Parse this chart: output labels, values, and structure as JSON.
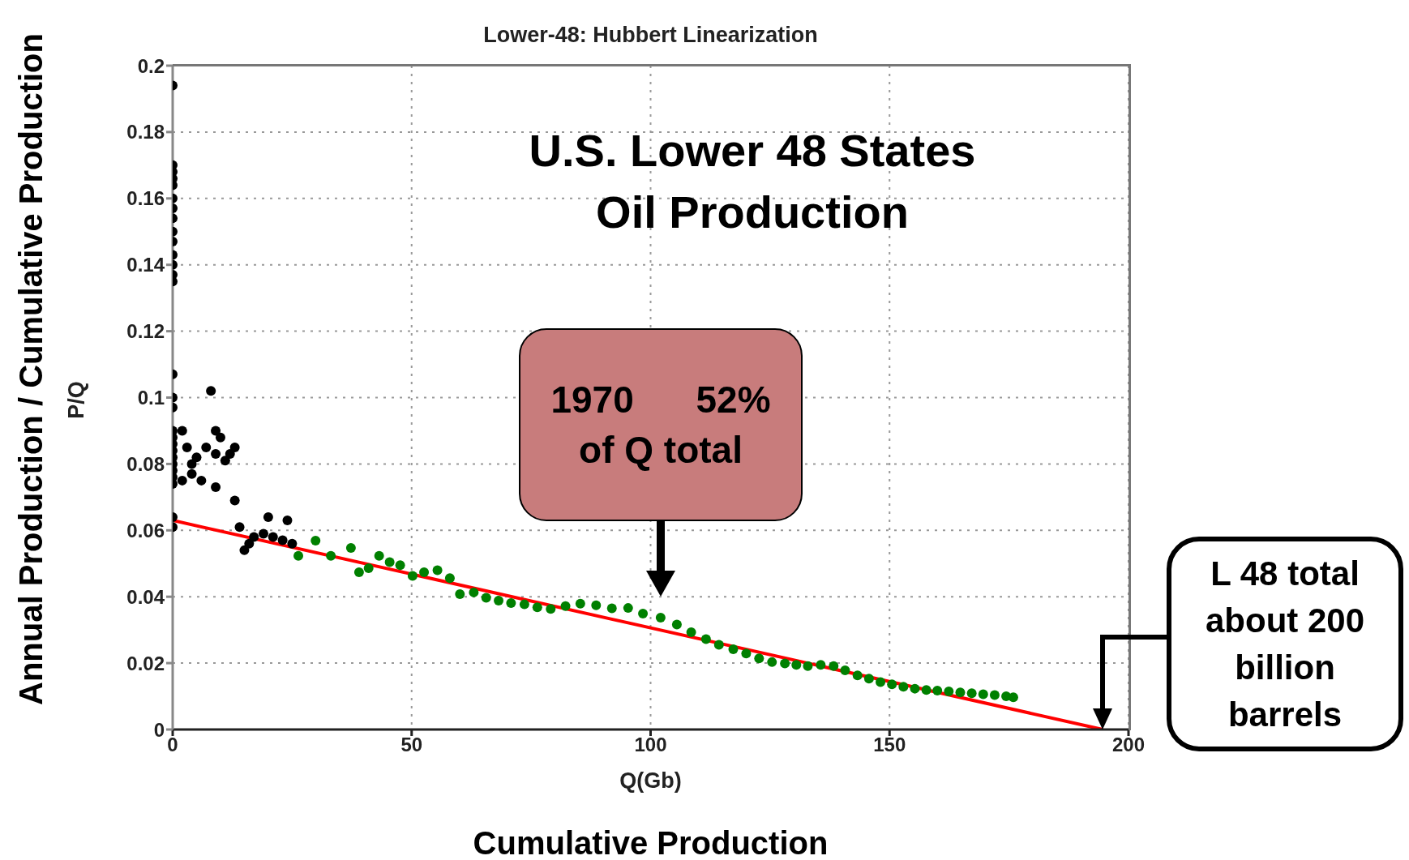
{
  "chart_data": {
    "type": "scatter",
    "title": "Lower-48: Hubbert Linearization",
    "xlabel": "Q(Gb)",
    "ylabel": "P/Q",
    "annotations": [
      "U.S. Lower 48 States Oil Production",
      "1970      52% of Q total",
      "L 48 total about 200 billion barrels",
      "Annual Production / Cumulative Production",
      "Cumulative Production"
    ],
    "xlim": [
      0,
      200
    ],
    "xticks": [
      0,
      50,
      100,
      150,
      200
    ],
    "ylim": [
      0,
      0.2
    ],
    "yticks": [
      0,
      0.02,
      0.04,
      0.06,
      0.08,
      0.1,
      0.12,
      0.14,
      0.16,
      0.18,
      0.2
    ],
    "grid": true,
    "marker": "circle",
    "series": [
      {
        "color": "#000000",
        "x": [
          0,
          0,
          0,
          0,
          0,
          0,
          0,
          0,
          0,
          0,
          0,
          0,
          0,
          0,
          0,
          0,
          0,
          0,
          0,
          0,
          0,
          0,
          0,
          0,
          0,
          0,
          0,
          0,
          2,
          3,
          4,
          4,
          5,
          6,
          2,
          8,
          9,
          10,
          9,
          11,
          12,
          13,
          7,
          9,
          13,
          14,
          15,
          16,
          17,
          20,
          19,
          21,
          24,
          23,
          25
        ],
        "values": [
          0.194,
          0.17,
          0.168,
          0.166,
          0.164,
          0.16,
          0.157,
          0.154,
          0.15,
          0.147,
          0.143,
          0.14,
          0.137,
          0.135,
          0.107,
          0.1,
          0.097,
          0.09,
          0.088,
          0.086,
          0.084,
          0.082,
          0.08,
          0.078,
          0.076,
          0.074,
          0.064,
          0.061,
          0.09,
          0.085,
          0.08,
          0.077,
          0.082,
          0.075,
          0.075,
          0.102,
          0.09,
          0.088,
          0.083,
          0.081,
          0.083,
          0.085,
          0.085,
          0.073,
          0.069,
          0.061,
          0.054,
          0.056,
          0.058,
          0.064,
          0.059,
          0.058,
          0.063,
          0.057,
          0.056
        ]
      },
      {
        "color": "#008000",
        "x": [
          26.3,
          29.9,
          33.1,
          37.3,
          39,
          41,
          43.2,
          45.4,
          47.6,
          50.2,
          52.6,
          55.4,
          58,
          60.1,
          63,
          65.6,
          68.2,
          70.8,
          73.6,
          76.3,
          79.1,
          82.2,
          85.3,
          88.6,
          91.9,
          95.3,
          98.4,
          102.1,
          105.5,
          108.5,
          111.6,
          114.3,
          117.3,
          120,
          122.7,
          125.4,
          128.1,
          130.5,
          132.9,
          135.6,
          138.3,
          140.7,
          143.3,
          145.7,
          148.1,
          150.5,
          152.9,
          155.3,
          157.7,
          160,
          162.4,
          164.8,
          167.2,
          169.6,
          172,
          174.4,
          175.9
        ],
        "values": [
          0.0523,
          0.0569,
          0.0523,
          0.0547,
          0.0474,
          0.0486,
          0.0523,
          0.0504,
          0.0495,
          0.0463,
          0.0474,
          0.048,
          0.0456,
          0.0408,
          0.0413,
          0.0397,
          0.0388,
          0.0381,
          0.0377,
          0.0368,
          0.0363,
          0.0372,
          0.0379,
          0.0374,
          0.0365,
          0.0366,
          0.0349,
          0.0337,
          0.0316,
          0.0293,
          0.0272,
          0.0255,
          0.0242,
          0.0229,
          0.0214,
          0.0203,
          0.0199,
          0.0195,
          0.0191,
          0.0195,
          0.0191,
          0.0178,
          0.0163,
          0.0153,
          0.0143,
          0.0136,
          0.0129,
          0.0123,
          0.0119,
          0.0117,
          0.0115,
          0.0112,
          0.0109,
          0.0106,
          0.0104,
          0.01,
          0.0097
        ]
      },
      {
        "type": "line",
        "color": "#ff0000",
        "line_style": "solid",
        "marker": "none",
        "x": [
          0,
          194.6
        ],
        "values": [
          0.063,
          0
        ]
      }
    ]
  }
}
